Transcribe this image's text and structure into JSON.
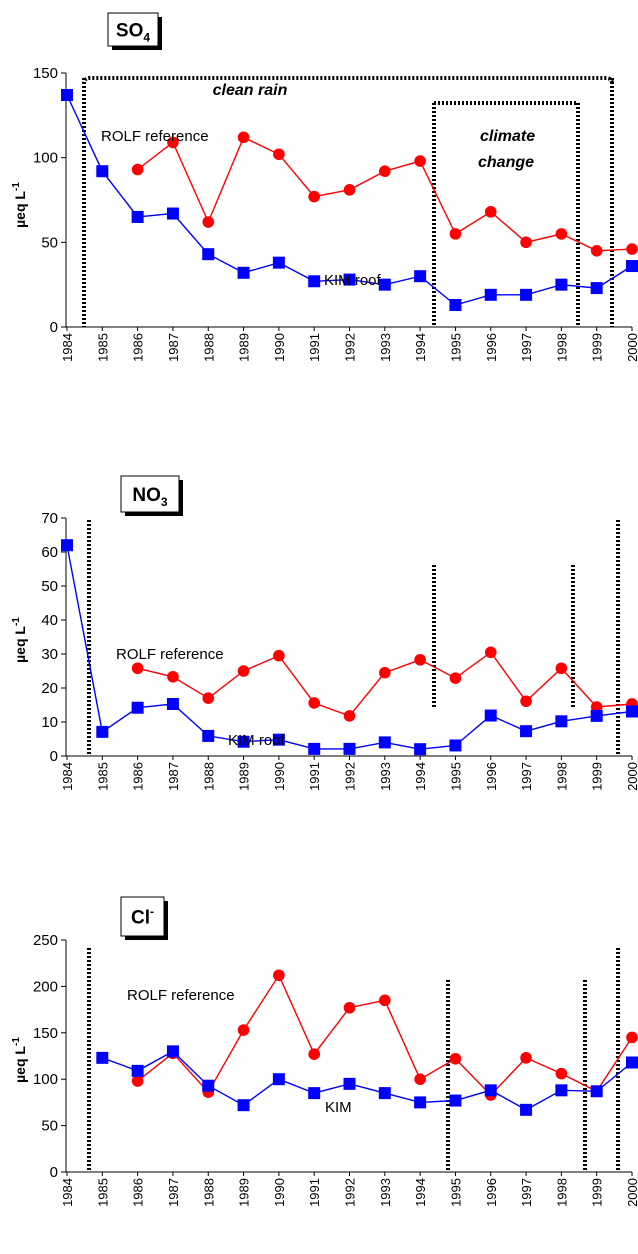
{
  "colors": {
    "rolf": "#ff0000",
    "kim": "#0000ff",
    "axis": "#000000"
  },
  "chart_data": [
    {
      "type": "line",
      "title_main": "SO",
      "title_sub": "4",
      "title_sup": "",
      "ylabel_main": "µeq L",
      "ylabel_sup": "-1",
      "ylim": [
        0,
        150
      ],
      "yticks": [
        0,
        50,
        100,
        150
      ],
      "x": [
        "1984",
        "1985",
        "1986",
        "1987",
        "1988",
        "1989",
        "1990",
        "1991",
        "1992",
        "1993",
        "1994",
        "1995",
        "1996",
        "1997",
        "1998",
        "1999",
        "2000"
      ],
      "series": [
        {
          "name": "ROLF reference",
          "marker": "circle",
          "color": "#ff0000",
          "values": [
            null,
            null,
            93,
            109,
            62,
            112,
            102,
            77,
            81,
            92,
            98,
            55,
            68,
            50,
            55,
            45,
            46
          ]
        },
        {
          "name": "KIM roof",
          "marker": "square",
          "color": "#0000ff",
          "values": [
            137,
            92,
            65,
            67,
            43,
            32,
            38,
            27,
            28,
            25,
            30,
            13,
            19,
            19,
            25,
            23,
            36
          ]
        }
      ],
      "annotations": [
        {
          "text": "clean rain"
        },
        {
          "text": "climate"
        },
        {
          "text": "change"
        }
      ]
    },
    {
      "type": "line",
      "title_main": "NO",
      "title_sub": "3",
      "title_sup": "",
      "ylabel_main": "µeq L",
      "ylabel_sup": "-1",
      "ylim": [
        0,
        70
      ],
      "yticks": [
        0,
        10,
        20,
        30,
        40,
        50,
        60,
        70
      ],
      "x": [
        "1984",
        "1985",
        "1986",
        "1987",
        "1988",
        "1989",
        "1990",
        "1991",
        "1992",
        "1993",
        "1994",
        "1995",
        "1996",
        "1997",
        "1998",
        "1999",
        "2000"
      ],
      "series": [
        {
          "name": "ROLF reference",
          "marker": "circle",
          "color": "#ff0000",
          "values": [
            null,
            null,
            25.8,
            23.3,
            17,
            25,
            29.5,
            15.6,
            11.8,
            24.5,
            28.3,
            22.9,
            30.5,
            16.1,
            25.8,
            14.4,
            15.3
          ]
        },
        {
          "name": "KIM roof",
          "marker": "square",
          "color": "#0000ff",
          "values": [
            62,
            7.1,
            14.2,
            15.3,
            5.9,
            4.2,
            4.8,
            2.1,
            2.1,
            4,
            2,
            3.1,
            11.9,
            7.3,
            10.2,
            11.8,
            13.1
          ]
        }
      ],
      "annotations": []
    },
    {
      "type": "line",
      "title_main": "Cl",
      "title_sub": "",
      "title_sup": "-",
      "ylabel_main": "µeq L",
      "ylabel_sup": "-1",
      "ylim": [
        0,
        250
      ],
      "yticks": [
        0,
        50,
        100,
        150,
        200,
        250
      ],
      "x": [
        "1984",
        "1985",
        "1986",
        "1987",
        "1988",
        "1989",
        "1990",
        "1991",
        "1992",
        "1993",
        "1994",
        "1995",
        "1996",
        "1997",
        "1998",
        "1999",
        "2000"
      ],
      "series": [
        {
          "name": "ROLF reference",
          "marker": "circle",
          "color": "#ff0000",
          "values": [
            null,
            null,
            98,
            128,
            86,
            153,
            212,
            127,
            177,
            185,
            100,
            122,
            83,
            123,
            106,
            87,
            145
          ]
        },
        {
          "name": "KIM",
          "marker": "square",
          "color": "#0000ff",
          "values": [
            null,
            123,
            109,
            130,
            93,
            72,
            100,
            85,
            95,
            85,
            75,
            77,
            88,
            67,
            88,
            87,
            118
          ]
        }
      ],
      "annotations": []
    }
  ]
}
